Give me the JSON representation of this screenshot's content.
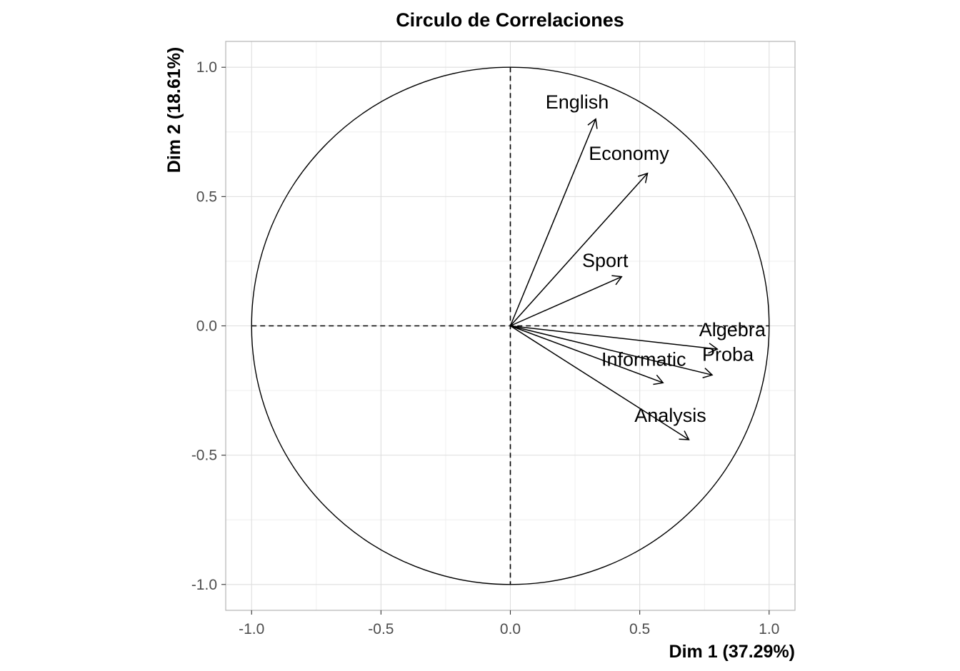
{
  "chart_data": {
    "type": "scatter",
    "title": "Circulo de Correlaciones",
    "xlabel": "Dim 1 (37.29%)",
    "ylabel": "Dim 2 (18.61%)",
    "xlim": [
      -1.1,
      1.1
    ],
    "ylim": [
      -1.1,
      1.1
    ],
    "x_ticks": [
      -1.0,
      -0.5,
      0.0,
      0.5,
      1.0
    ],
    "y_ticks": [
      -1.0,
      -0.5,
      0.0,
      0.5,
      1.0
    ],
    "x_tick_labels": [
      "-1.0",
      "-0.5",
      "0.0",
      "0.5",
      "1.0"
    ],
    "y_tick_labels": [
      "-1.0",
      "-0.5",
      "0.0",
      "0.5",
      "1.0"
    ],
    "grid": true,
    "unit_circle": true,
    "reference_lines": [
      "x=0",
      "y=0"
    ],
    "variables": [
      {
        "name": "English",
        "x": 0.33,
        "y": 0.8
      },
      {
        "name": "Economy",
        "x": 0.53,
        "y": 0.59
      },
      {
        "name": "Sport",
        "x": 0.43,
        "y": 0.19
      },
      {
        "name": "Algebra",
        "x": 0.8,
        "y": -0.09
      },
      {
        "name": "Proba",
        "x": 0.78,
        "y": -0.19
      },
      {
        "name": "Informatic",
        "x": 0.59,
        "y": -0.22
      },
      {
        "name": "Analysis",
        "x": 0.69,
        "y": -0.44
      }
    ],
    "colors": {
      "arrows": "#000000",
      "circle": "#000000",
      "grid": "#dedede",
      "panel_border": "#b3b3b3"
    }
  }
}
